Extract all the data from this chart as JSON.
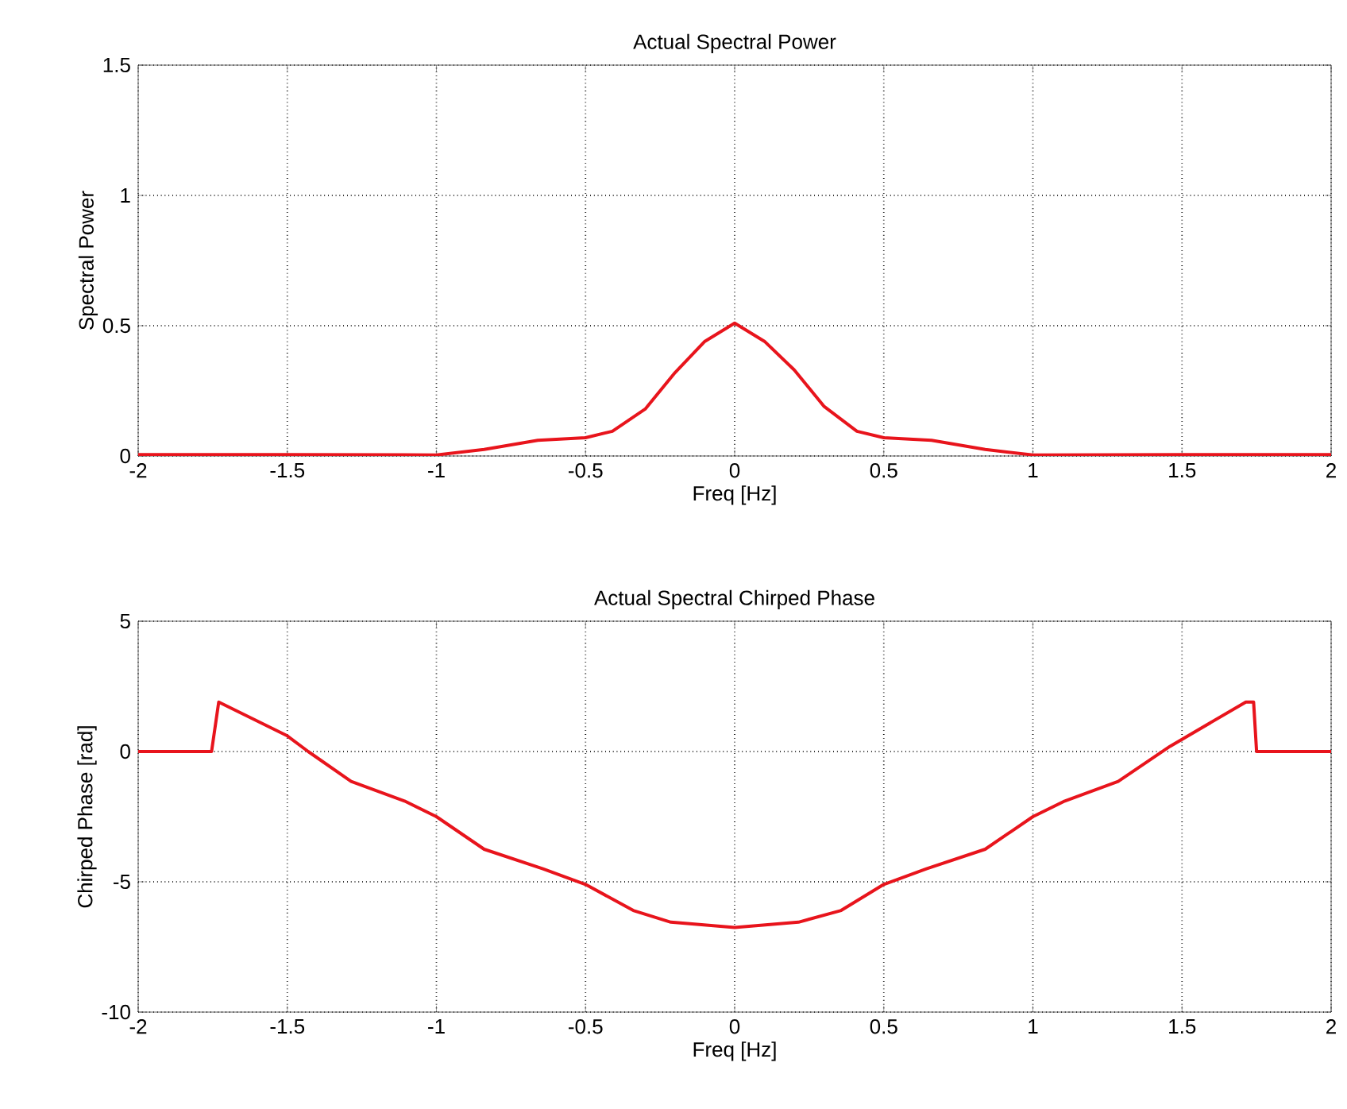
{
  "chart_data": [
    {
      "type": "line",
      "title": "Actual Spectral Power",
      "xlabel": "Freq [Hz]",
      "ylabel": "Spectral Power",
      "color": "#e8141c",
      "grid": true,
      "line_style": "solid",
      "x": [
        -2,
        -1.5,
        -1,
        -0.84,
        -0.66,
        -0.5,
        -0.41,
        -0.3,
        -0.2,
        -0.1,
        0,
        0.1,
        0.2,
        0.3,
        0.41,
        0.5,
        0.66,
        0.84,
        1,
        1.5,
        2
      ],
      "values": [
        0.005,
        0.005,
        0.004,
        0.025,
        0.06,
        0.07,
        0.095,
        0.18,
        0.32,
        0.44,
        0.51,
        0.44,
        0.33,
        0.19,
        0.095,
        0.07,
        0.06,
        0.025,
        0.004,
        0.005,
        0.005
      ],
      "xlim": [
        -2,
        2
      ],
      "ylim": [
        0,
        1.5
      ],
      "xticks": [
        -2,
        -1.5,
        -1,
        -0.5,
        0,
        0.5,
        1,
        1.5,
        2
      ],
      "yticks": [
        0,
        0.5,
        1,
        1.5
      ]
    },
    {
      "type": "line",
      "title": "Actual Spectral Chirped Phase",
      "xlabel": "Freq [Hz]",
      "ylabel": "Chirped Phase [rad]",
      "color": "#e8141c",
      "grid": true,
      "line_style": "solid",
      "x": [
        -2,
        -1.754,
        -1.73,
        -1.5,
        -1.43,
        -1.286,
        -1.107,
        -1.0,
        -0.84,
        -0.643,
        -0.5,
        -0.34,
        -0.214,
        0,
        0.214,
        0.357,
        0.5,
        0.643,
        0.84,
        1.0,
        1.107,
        1.286,
        1.46,
        1.714,
        1.74,
        1.75,
        2
      ],
      "values": [
        0,
        0,
        1.9,
        0.6,
        0,
        -1.15,
        -1.9,
        -2.5,
        -3.75,
        -4.5,
        -5.1,
        -6.1,
        -6.55,
        -6.75,
        -6.55,
        -6.1,
        -5.1,
        -4.5,
        -3.75,
        -2.5,
        -1.9,
        -1.15,
        0.2,
        1.9,
        1.9,
        0,
        0
      ],
      "xlim": [
        -2,
        2
      ],
      "ylim": [
        -10,
        5
      ],
      "xticks": [
        -2,
        -1.5,
        -1,
        -0.5,
        0,
        0.5,
        1,
        1.5,
        2
      ],
      "yticks": [
        -10,
        -5,
        0,
        5
      ]
    }
  ]
}
